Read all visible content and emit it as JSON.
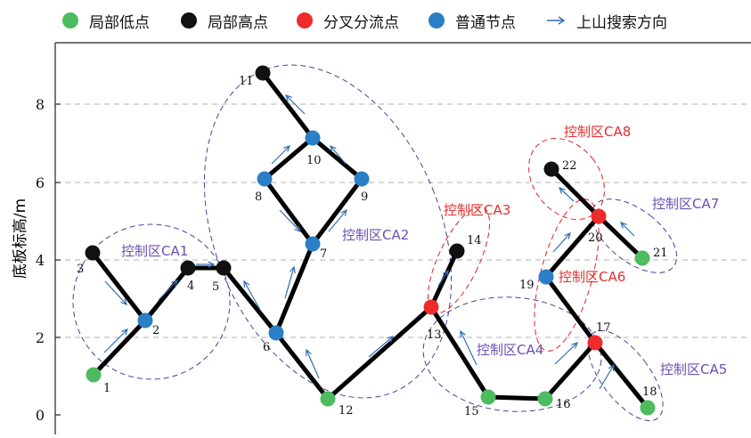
{
  "legend": {
    "local_low": "局部低点",
    "local_high": "局部高点",
    "branch_point": "分叉分流点",
    "normal_node": "普通节点",
    "uphill_direction": "上山搜索方向"
  },
  "colors": {
    "local_low": "#4dbb5f",
    "local_high": "#111111",
    "branch_point": "#ee2c2c",
    "normal_node": "#2a7fc7",
    "arrow": "#2f6fb3",
    "zone_purple": "#4b3fa0",
    "zone_red": "#e02020",
    "label_purple": "#6a4fb0",
    "label_red": "#e03030",
    "grid": "#b0b0b0",
    "edge": "#000000"
  },
  "axis": {
    "ylabel": "底板标高/m",
    "yticks": [
      "0",
      "2",
      "4",
      "6",
      "8"
    ]
  },
  "nodes": [
    {
      "id": "1",
      "type": "local_low"
    },
    {
      "id": "2",
      "type": "normal_node"
    },
    {
      "id": "3",
      "type": "local_high"
    },
    {
      "id": "4",
      "type": "local_high"
    },
    {
      "id": "5",
      "type": "local_high"
    },
    {
      "id": "6",
      "type": "normal_node"
    },
    {
      "id": "7",
      "type": "normal_node"
    },
    {
      "id": "8",
      "type": "normal_node"
    },
    {
      "id": "9",
      "type": "normal_node"
    },
    {
      "id": "10",
      "type": "normal_node"
    },
    {
      "id": "11",
      "type": "local_high"
    },
    {
      "id": "12",
      "type": "local_low"
    },
    {
      "id": "13",
      "type": "branch_point"
    },
    {
      "id": "14",
      "type": "local_high"
    },
    {
      "id": "15",
      "type": "local_low"
    },
    {
      "id": "16",
      "type": "local_low"
    },
    {
      "id": "17",
      "type": "branch_point"
    },
    {
      "id": "18",
      "type": "local_low"
    },
    {
      "id": "19",
      "type": "normal_node"
    },
    {
      "id": "20",
      "type": "branch_point"
    },
    {
      "id": "21",
      "type": "local_low"
    },
    {
      "id": "22",
      "type": "local_high"
    }
  ],
  "edges": [
    [
      "1",
      "2"
    ],
    [
      "2",
      "3"
    ],
    [
      "2",
      "4"
    ],
    [
      "4",
      "5"
    ],
    [
      "5",
      "6"
    ],
    [
      "6",
      "7"
    ],
    [
      "7",
      "8"
    ],
    [
      "7",
      "9"
    ],
    [
      "8",
      "10"
    ],
    [
      "9",
      "10"
    ],
    [
      "10",
      "11"
    ],
    [
      "6",
      "12"
    ],
    [
      "12",
      "13"
    ],
    [
      "13",
      "14"
    ],
    [
      "13",
      "15"
    ],
    [
      "15",
      "16"
    ],
    [
      "16",
      "17"
    ],
    [
      "17",
      "18"
    ],
    [
      "17",
      "19"
    ],
    [
      "19",
      "20"
    ],
    [
      "20",
      "21"
    ],
    [
      "20",
      "22"
    ]
  ],
  "zones": [
    {
      "id": "CA1",
      "label": "控制区CA1",
      "color": "purple"
    },
    {
      "id": "CA2",
      "label": "控制区CA2",
      "color": "purple"
    },
    {
      "id": "CA3",
      "label": "控制区CA3",
      "color": "red"
    },
    {
      "id": "CA4",
      "label": "控制区CA4",
      "color": "purple"
    },
    {
      "id": "CA5",
      "label": "控制区CA5",
      "color": "purple"
    },
    {
      "id": "CA6",
      "label": "控制区CA6",
      "color": "red"
    },
    {
      "id": "CA7",
      "label": "控制区CA7",
      "color": "purple"
    },
    {
      "id": "CA8",
      "label": "控制区CA8",
      "color": "red"
    }
  ]
}
